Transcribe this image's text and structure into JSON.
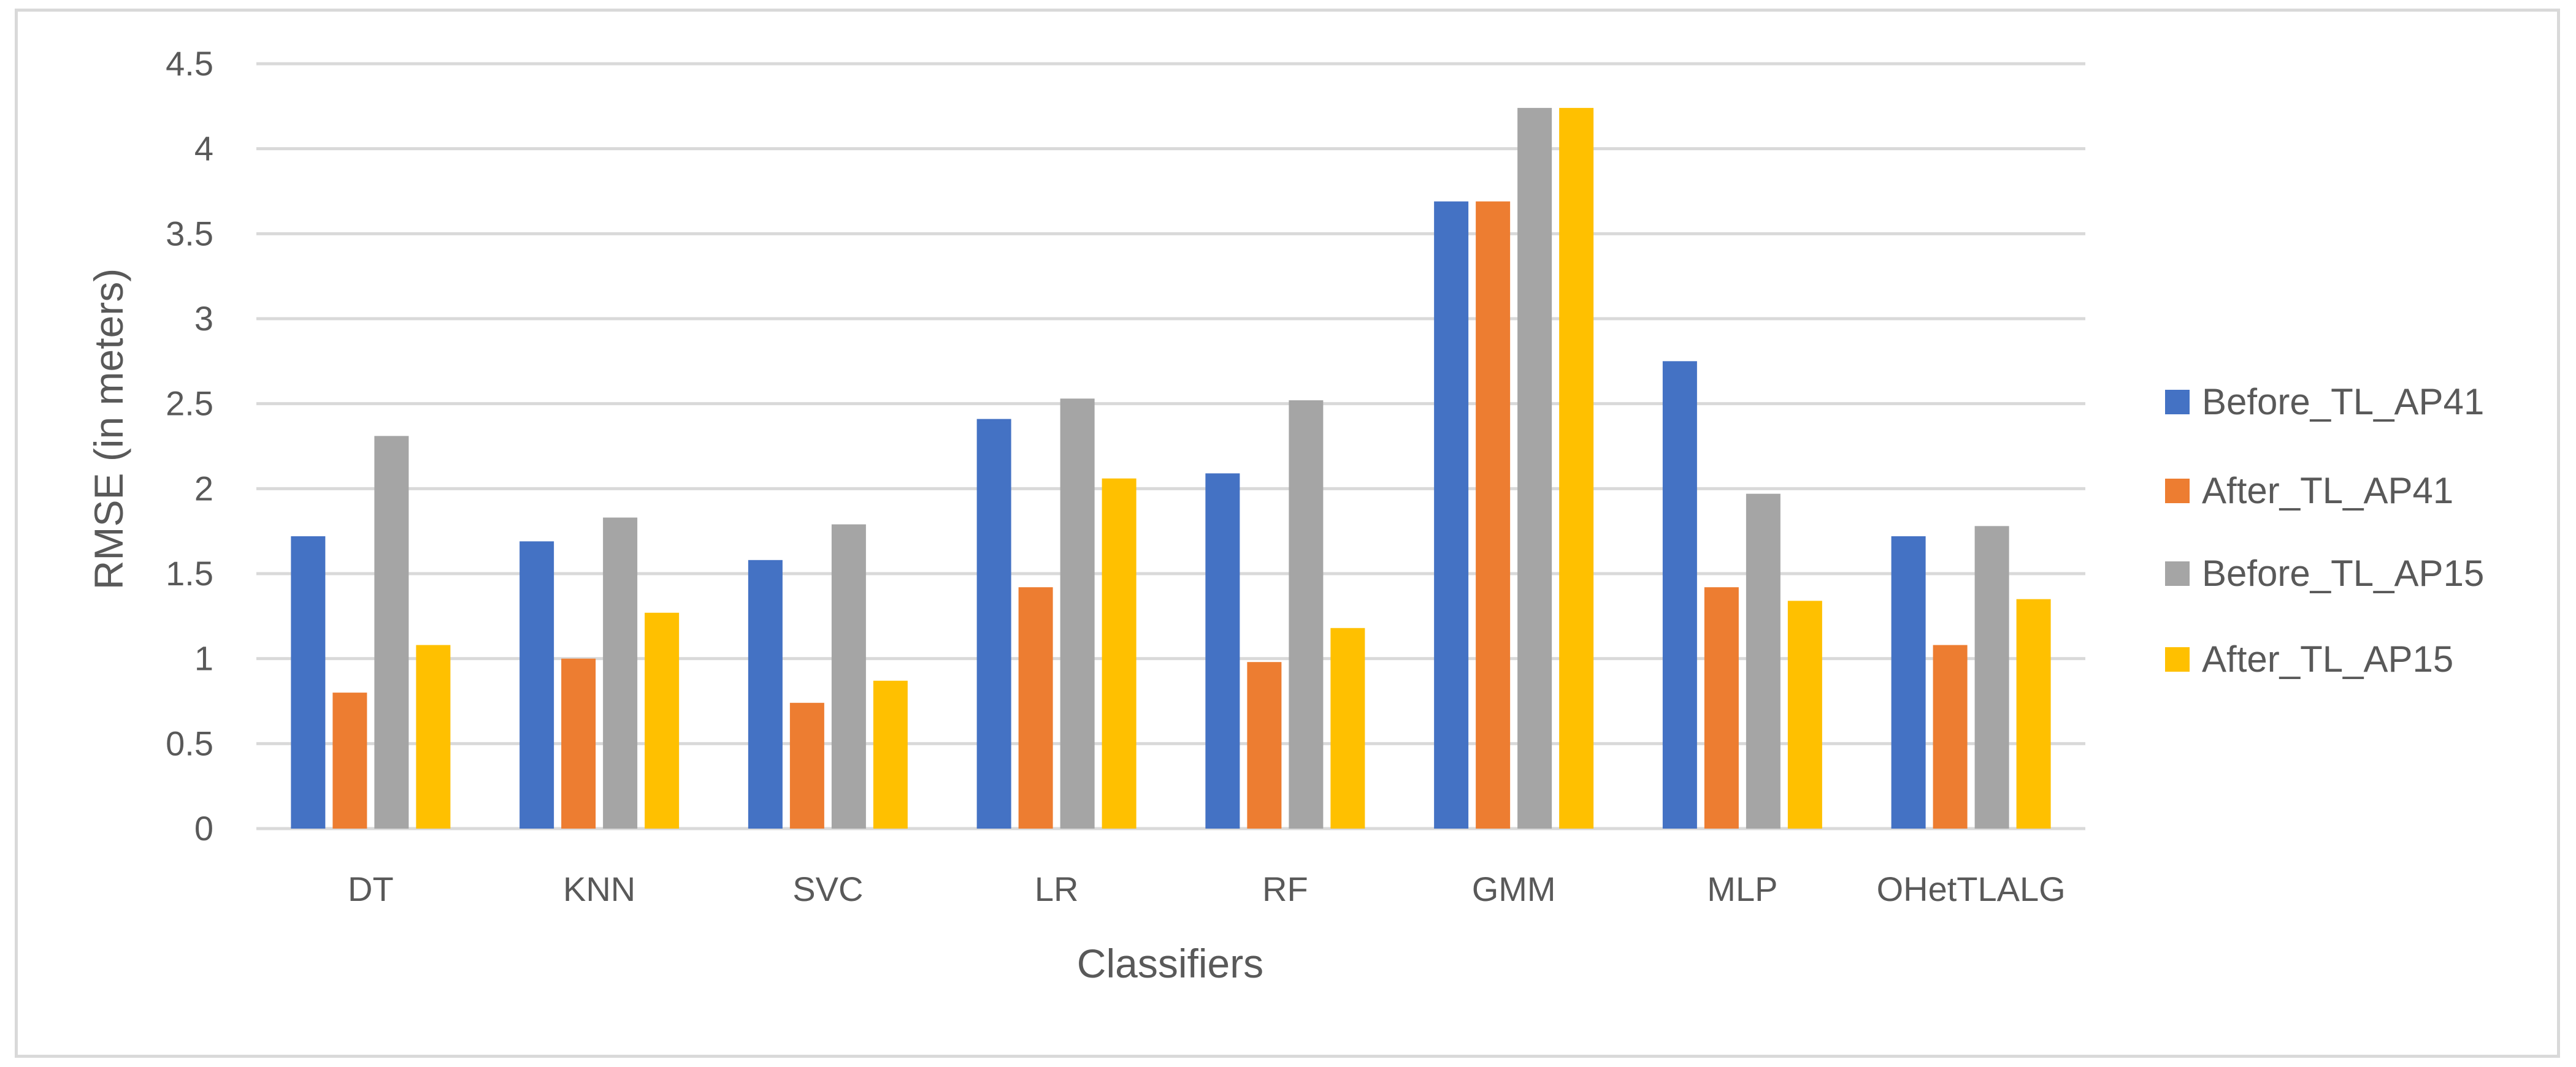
{
  "chart_data": {
    "type": "bar",
    "title": "",
    "xlabel": "Classifiers",
    "ylabel": "RMSE (in meters)",
    "ylim": [
      0,
      4.5
    ],
    "yticks": [
      0,
      0.5,
      1,
      1.5,
      2,
      2.5,
      3,
      3.5,
      4,
      4.5
    ],
    "grid": true,
    "legend_position": "right",
    "categories": [
      "DT",
      "KNN",
      "SVC",
      "LR",
      "RF",
      "GMM",
      "MLP",
      "OHetTLALG"
    ],
    "series": [
      {
        "name": "Before_TL_AP41",
        "color": "#4472c4",
        "values": [
          1.72,
          1.69,
          1.58,
          2.41,
          2.09,
          3.69,
          2.75,
          1.72
        ]
      },
      {
        "name": "After_TL_AP41",
        "color": "#ed7d31",
        "values": [
          0.8,
          1.0,
          0.74,
          1.42,
          0.98,
          3.69,
          1.42,
          1.08
        ]
      },
      {
        "name": "Before_TL_AP15",
        "color": "#a5a5a5",
        "values": [
          2.31,
          1.83,
          1.79,
          2.53,
          2.52,
          4.24,
          1.97,
          1.78
        ]
      },
      {
        "name": "After_TL_AP15",
        "color": "#ffc000",
        "values": [
          1.08,
          1.27,
          0.87,
          2.06,
          1.18,
          4.24,
          1.34,
          1.35
        ]
      }
    ]
  }
}
